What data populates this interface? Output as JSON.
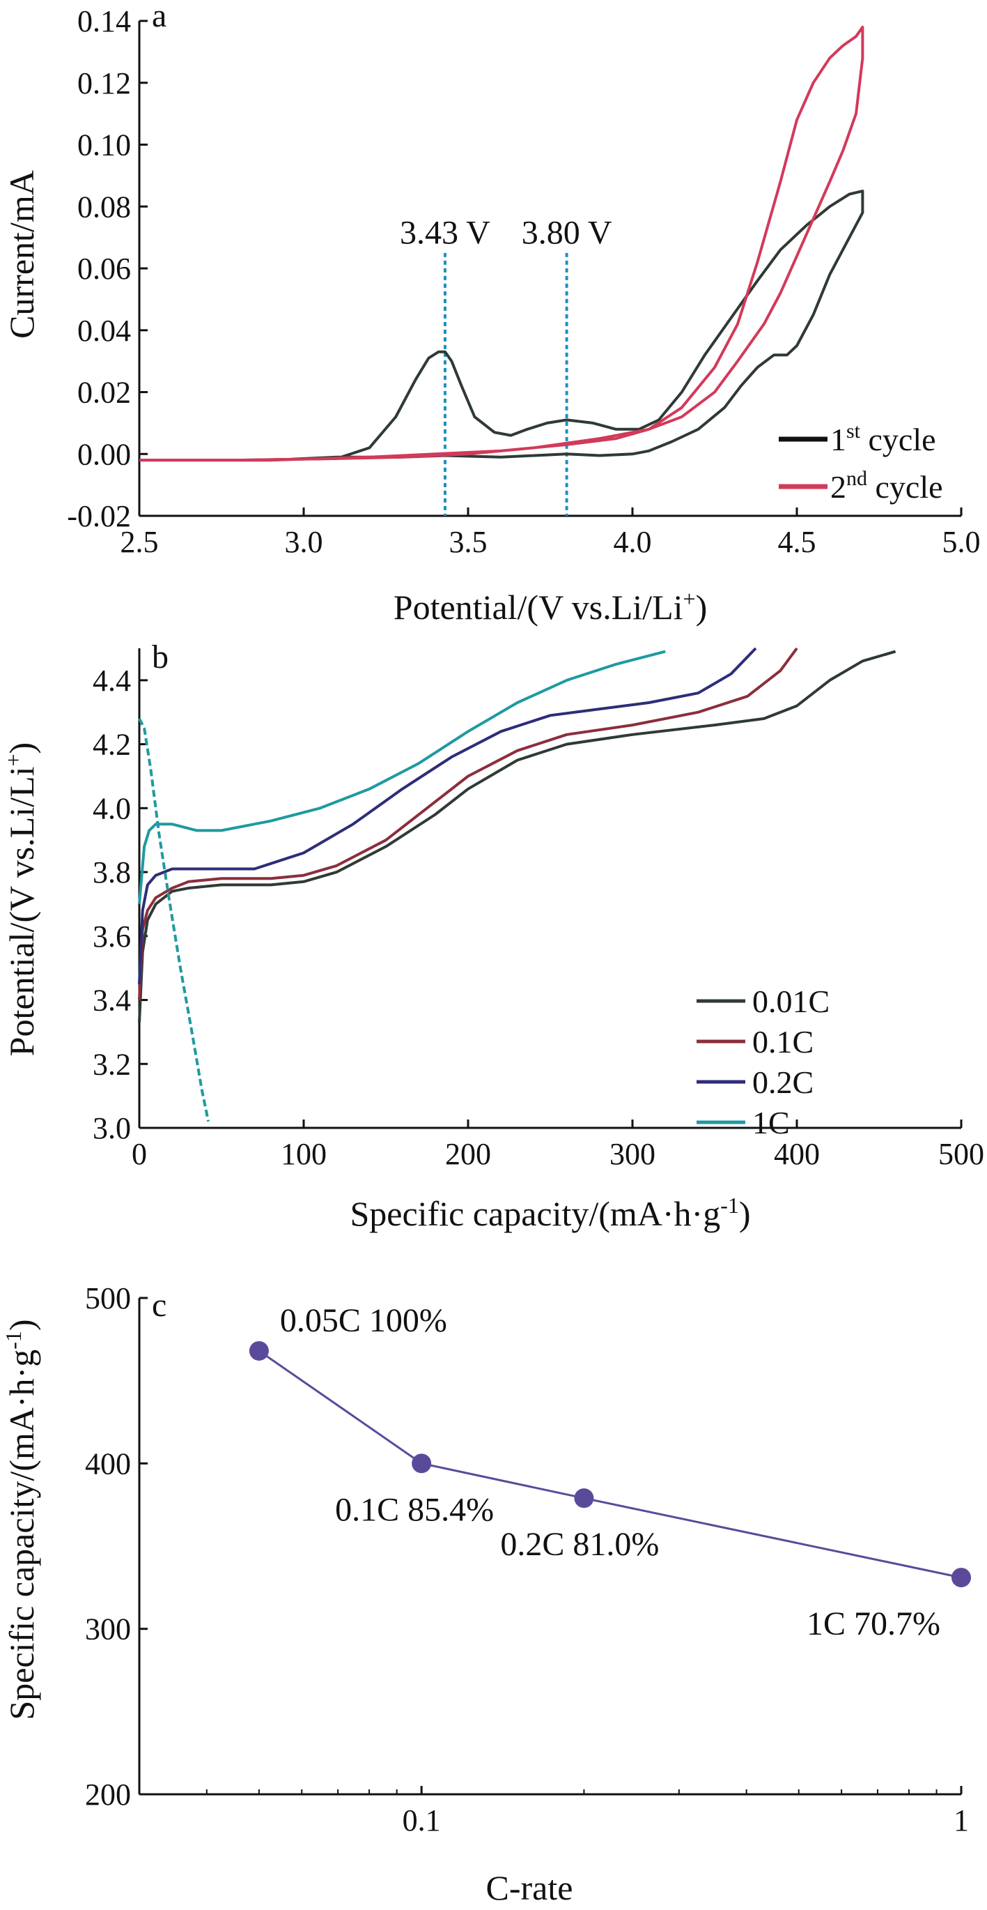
{
  "panels": [
    {
      "label": "a",
      "chart_data": {
        "type": "line",
        "xlabel": "Potential/(V vs.Li/Li",
        "xlabel_sup": "+",
        "xlabel_tail": ")",
        "ylabel": "Current/mA",
        "xlim": [
          2.5,
          5.0
        ],
        "ylim": [
          -0.02,
          0.14
        ],
        "xticks": [
          "2.5",
          "3.0",
          "3.5",
          "4.0",
          "4.5",
          "5.0"
        ],
        "xtick_values": [
          2.5,
          3.0,
          3.5,
          4.0,
          4.5,
          5.0
        ],
        "yticks": [
          "-0.02",
          "0.00",
          "0.02",
          "0.04",
          "0.06",
          "0.08",
          "0.10",
          "0.12",
          "0.14"
        ],
        "ytick_values": [
          -0.02,
          0.0,
          0.02,
          0.04,
          0.06,
          0.08,
          0.1,
          0.12,
          0.14
        ],
        "annotations": [
          {
            "text": "3.43 V",
            "x": 3.43
          },
          {
            "text": "3.80 V",
            "x": 3.8
          }
        ],
        "legend_position": "bottom-right",
        "series": [
          {
            "name": "1",
            "name_sup": "st",
            "name_tail": " cycle",
            "color": "#2f3a35",
            "x": [
              2.5,
              2.8,
              3.1,
              3.2,
              3.28,
              3.34,
              3.38,
              3.41,
              3.43,
              3.45,
              3.48,
              3.52,
              3.58,
              3.63,
              3.68,
              3.74,
              3.8,
              3.88,
              3.95,
              4.02,
              4.08,
              4.15,
              4.22,
              4.3,
              4.38,
              4.45,
              4.53,
              4.6,
              4.66,
              4.7,
              4.7,
              4.66,
              4.6,
              4.55,
              4.5,
              4.47,
              4.43,
              4.38,
              4.33,
              4.28,
              4.2,
              4.12,
              4.05,
              4.0,
              3.9,
              3.8,
              3.6,
              3.43,
              3.3,
              3.1,
              2.9,
              2.7,
              2.5
            ],
            "y": [
              -0.002,
              -0.002,
              -0.0015,
              0.002,
              0.012,
              0.024,
              0.031,
              0.033,
              0.033,
              0.03,
              0.022,
              0.012,
              0.007,
              0.006,
              0.008,
              0.01,
              0.011,
              0.01,
              0.008,
              0.008,
              0.011,
              0.02,
              0.032,
              0.044,
              0.056,
              0.066,
              0.074,
              0.08,
              0.084,
              0.085,
              0.078,
              0.07,
              0.058,
              0.045,
              0.035,
              0.032,
              0.032,
              0.028,
              0.022,
              0.015,
              0.008,
              0.004,
              0.001,
              0.0,
              -0.0005,
              0.0,
              -0.001,
              -0.0005,
              -0.001,
              -0.001,
              -0.002,
              -0.002,
              -0.002
            ]
          },
          {
            "name": "2",
            "name_sup": "nd",
            "name_tail": " cycle",
            "color": "#d23a5a",
            "x": [
              2.5,
              2.8,
              3.1,
              3.3,
              3.5,
              3.7,
              3.9,
              4.05,
              4.15,
              4.25,
              4.32,
              4.38,
              4.45,
              4.5,
              4.55,
              4.6,
              4.64,
              4.68,
              4.7,
              4.7,
              4.68,
              4.64,
              4.6,
              4.55,
              4.5,
              4.45,
              4.4,
              4.32,
              4.25,
              4.15,
              4.05,
              3.95,
              3.8,
              3.6,
              3.4,
              3.2,
              2.9,
              2.7,
              2.5
            ],
            "y": [
              -0.002,
              -0.002,
              -0.0015,
              -0.001,
              0.0,
              0.002,
              0.005,
              0.008,
              0.015,
              0.028,
              0.042,
              0.062,
              0.088,
              0.108,
              0.12,
              0.128,
              0.132,
              0.135,
              0.138,
              0.128,
              0.11,
              0.098,
              0.088,
              0.076,
              0.064,
              0.052,
              0.042,
              0.03,
              0.02,
              0.012,
              0.008,
              0.005,
              0.003,
              0.001,
              0.0,
              -0.001,
              -0.002,
              -0.002,
              -0.002
            ]
          }
        ]
      }
    },
    {
      "label": "b",
      "chart_data": {
        "type": "line",
        "xlabel": "Specific capacity/(mA·h·g",
        "xlabel_sup": "-1",
        "xlabel_tail": ")",
        "ylabel": "Potential/(V vs.Li/Li",
        "ylabel_sup": "+",
        "ylabel_tail": ")",
        "xlim": [
          0,
          500
        ],
        "ylim": [
          3.0,
          4.5
        ],
        "xticks": [
          "0",
          "100",
          "200",
          "300",
          "400",
          "500"
        ],
        "xtick_values": [
          0,
          100,
          200,
          300,
          400,
          500
        ],
        "yticks": [
          "3.0",
          "3.2",
          "3.4",
          "3.6",
          "3.8",
          "4.0",
          "4.2",
          "4.4"
        ],
        "ytick_values": [
          3.0,
          3.2,
          3.4,
          3.6,
          3.8,
          4.0,
          4.2,
          4.4
        ],
        "legend_position": "right",
        "series": [
          {
            "name": "0.01C",
            "color": "#2f3a35",
            "x": [
              0,
              2,
              5,
              10,
              20,
              30,
              50,
              80,
              100,
              120,
              150,
              180,
              200,
              230,
              260,
              300,
              350,
              380,
              400,
              420,
              440,
              460
            ],
            "y": [
              3.33,
              3.55,
              3.65,
              3.7,
              3.74,
              3.75,
              3.76,
              3.76,
              3.77,
              3.8,
              3.88,
              3.98,
              4.06,
              4.15,
              4.2,
              4.23,
              4.26,
              4.28,
              4.32,
              4.4,
              4.46,
              4.49
            ]
          },
          {
            "name": "0.1C",
            "color": "#8c2e3c",
            "x": [
              0,
              2,
              5,
              10,
              20,
              30,
              50,
              80,
              100,
              120,
              150,
              180,
              200,
              230,
              260,
              300,
              340,
              370,
              390,
              400
            ],
            "y": [
              3.4,
              3.62,
              3.68,
              3.72,
              3.75,
              3.77,
              3.78,
              3.78,
              3.79,
              3.82,
              3.9,
              4.02,
              4.1,
              4.18,
              4.23,
              4.26,
              4.3,
              4.35,
              4.43,
              4.5
            ]
          },
          {
            "name": "0.2C",
            "color": "#2d2d7a",
            "x": [
              0,
              2,
              5,
              10,
              20,
              40,
              70,
              100,
              130,
              160,
              190,
              220,
              250,
              280,
              310,
              340,
              360,
              375
            ],
            "y": [
              3.45,
              3.68,
              3.76,
              3.79,
              3.81,
              3.81,
              3.81,
              3.86,
              3.95,
              4.06,
              4.16,
              4.24,
              4.29,
              4.31,
              4.33,
              4.36,
              4.42,
              4.5
            ]
          },
          {
            "name": "1C",
            "color": "#1e9aa0",
            "x": [
              0,
              3,
              6,
              10,
              20,
              35,
              50,
              80,
              110,
              140,
              170,
              200,
              230,
              260,
              290,
              320
            ],
            "y": [
              3.7,
              3.88,
              3.93,
              3.95,
              3.95,
              3.93,
              3.93,
              3.96,
              4.0,
              4.06,
              4.14,
              4.24,
              4.33,
              4.4,
              4.45,
              4.49
            ]
          },
          {
            "name": "",
            "color": "#1e9aa0",
            "dashed": true,
            "x": [
              0,
              3,
              7,
              12,
              18,
              25,
              32,
              38,
              42
            ],
            "y": [
              4.28,
              4.25,
              4.12,
              3.92,
              3.72,
              3.5,
              3.3,
              3.12,
              3.02
            ]
          }
        ]
      }
    },
    {
      "label": "c",
      "chart_data": {
        "type": "scatter",
        "scale_x": "log",
        "xlabel": "C-rate",
        "ylabel": "Specific capacity/(mA·h·g",
        "ylabel_sup": "-1",
        "ylabel_tail": ")",
        "xlim": [
          0.03,
          1
        ],
        "ylim": [
          200,
          500
        ],
        "xticks": [
          "0.1",
          "1"
        ],
        "xtick_values": [
          0.1,
          1
        ],
        "yticks": [
          "200",
          "300",
          "400",
          "500"
        ],
        "ytick_values": [
          200,
          300,
          400,
          500
        ],
        "series": [
          {
            "name": "",
            "color": "#5b4a9a",
            "x": [
              0.05,
              0.1,
              0.2,
              1
            ],
            "y": [
              468,
              400,
              379,
              331
            ],
            "labels": [
              "0.05C 100%",
              "0.1C 85.4%",
              "0.2C 81.0%",
              "1C 70.7%"
            ]
          }
        ]
      }
    }
  ]
}
